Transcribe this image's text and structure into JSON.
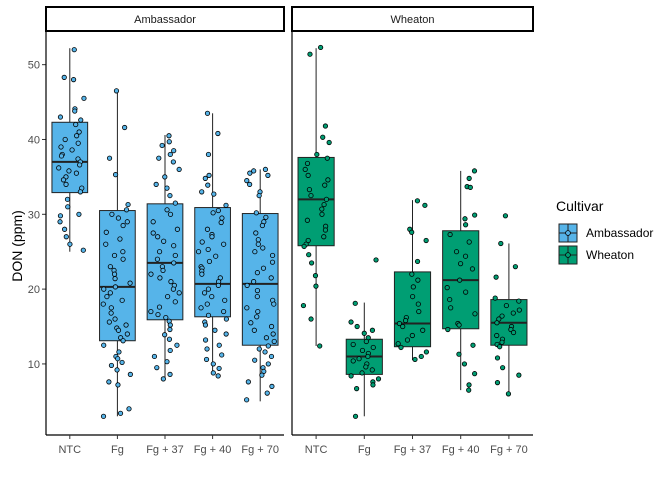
{
  "chart_data": {
    "type": "box",
    "ylabel": "DON (ppm)",
    "ylim": [
      0.5,
      54.5
    ],
    "yticks": [
      10,
      20,
      30,
      40,
      50
    ],
    "categories": [
      "NTC",
      "Fg",
      "Fg + 37",
      "Fg + 40",
      "Fg + 70"
    ],
    "legend": {
      "title": "Cultivar",
      "position": "right"
    },
    "panels": [
      {
        "name": "Ambassador",
        "color": "#56B4E9",
        "boxes": [
          {
            "category": "NTC",
            "min": 25.0,
            "q1": 32.9,
            "median": 37.0,
            "q3": 42.3,
            "max": 52.2
          },
          {
            "category": "Fg",
            "min": 3.0,
            "q1": 13.1,
            "median": 20.3,
            "q3": 30.5,
            "max": 46.3
          },
          {
            "category": "Fg + 37",
            "min": 8.0,
            "q1": 15.9,
            "median": 23.5,
            "q3": 31.4,
            "max": 40.6
          },
          {
            "category": "Fg + 40",
            "min": 8.5,
            "q1": 16.3,
            "median": 20.7,
            "q3": 30.9,
            "max": 43.5
          },
          {
            "category": "Fg + 70",
            "min": 5.0,
            "q1": 12.5,
            "median": 20.7,
            "q3": 30.1,
            "max": 36.0
          }
        ],
        "points": [
          [
            52.0,
            48.3,
            48.0,
            45.5,
            44.1,
            43.8,
            43.0,
            42.6,
            42.0,
            41.0,
            40.5,
            40.0,
            39.5,
            39.0,
            38.6,
            38.0,
            37.8,
            37.4,
            37.0,
            36.6,
            36.2,
            35.8,
            35.5,
            35.0,
            34.6,
            34.0,
            33.5,
            33.0,
            32.0,
            31.0,
            30.0,
            29.8,
            29.0,
            28.0,
            27.0,
            26.0,
            25.2
          ],
          [
            46.5,
            41.6,
            37.5,
            35.3,
            31.3,
            30.6,
            30.0,
            29.5,
            29.0,
            28.5,
            27.6,
            26.7,
            26.0,
            25.0,
            24.5,
            24.0,
            23.0,
            22.5,
            22.0,
            21.4,
            20.8,
            20.3,
            20.0,
            19.5,
            19.0,
            18.5,
            18.0,
            17.5,
            16.8,
            16.0,
            15.6,
            15.2,
            14.8,
            14.5,
            14.0,
            13.5,
            13.1,
            12.5,
            11.6,
            11.0,
            10.7,
            10.2,
            9.8,
            9.2,
            8.6,
            7.6,
            7.2,
            4.0,
            3.4,
            3.0
          ],
          [
            40.5,
            39.7,
            39.2,
            38.5,
            38.0,
            37.5,
            37.0,
            36.0,
            35.0,
            34.0,
            33.5,
            32.5,
            31.5,
            30.6,
            30.0,
            29.0,
            28.0,
            27.5,
            27.0,
            26.4,
            25.8,
            25.0,
            24.5,
            24.0,
            23.5,
            23.0,
            22.5,
            22.0,
            21.5,
            21.0,
            20.5,
            20.0,
            19.5,
            19.0,
            18.3,
            17.6,
            17.0,
            16.6,
            16.2,
            15.7,
            15.2,
            14.6,
            13.9,
            13.3,
            12.5,
            11.8,
            11.0,
            10.3,
            9.5,
            8.6,
            8.0
          ],
          [
            43.5,
            40.8,
            38.0,
            35.2,
            34.8,
            33.9,
            33.0,
            32.7,
            31.2,
            30.5,
            30.2,
            29.5,
            28.9,
            28.0,
            27.3,
            27.0,
            26.3,
            26.0,
            25.3,
            25.0,
            24.4,
            23.7,
            23.0,
            22.8,
            22.4,
            22.0,
            21.5,
            21.0,
            20.5,
            20.0,
            19.5,
            19.0,
            18.5,
            18.0,
            17.5,
            17.0,
            16.5,
            16.0,
            15.6,
            15.2,
            14.5,
            14.0,
            13.2,
            12.5,
            12.0,
            11.2,
            10.6,
            10.0,
            9.4,
            8.8,
            8.4
          ],
          [
            36.0,
            35.8,
            35.5,
            35.2,
            34.5,
            34.0,
            33.0,
            32.5,
            30.2,
            29.6,
            29.0,
            28.5,
            27.5,
            26.6,
            26.0,
            25.5,
            25.0,
            24.5,
            23.6,
            22.8,
            22.2,
            21.5,
            21.0,
            20.5,
            19.8,
            19.0,
            18.5,
            18.0,
            17.5,
            17.0,
            16.3,
            15.5,
            15.0,
            14.5,
            14.0,
            13.5,
            13.0,
            12.4,
            12.0,
            11.6,
            11.0,
            10.5,
            10.0,
            9.5,
            9.0,
            8.5,
            7.6,
            7.0,
            6.1,
            5.2
          ]
        ]
      },
      {
        "name": "Wheaton",
        "color": "#009E73",
        "boxes": [
          {
            "category": "NTC",
            "min": 12.4,
            "q1": 25.8,
            "median": 32.0,
            "q3": 37.6,
            "max": 52.2
          },
          {
            "category": "Fg",
            "min": 3.0,
            "q1": 8.6,
            "median": 11.0,
            "q3": 13.3,
            "max": 18.2
          },
          {
            "category": "Fg + 37",
            "min": 10.5,
            "q1": 12.3,
            "median": 15.4,
            "q3": 22.3,
            "max": 31.9
          },
          {
            "category": "Fg + 40",
            "min": 6.5,
            "q1": 14.7,
            "median": 21.2,
            "q3": 27.8,
            "max": 35.8
          },
          {
            "category": "Fg + 70",
            "min": 6.0,
            "q1": 12.5,
            "median": 15.5,
            "q3": 18.6,
            "max": 26.1
          }
        ],
        "points": [
          [
            52.3,
            51.4,
            41.8,
            40.3,
            39.6,
            38.0,
            37.5,
            36.8,
            36.0,
            35.2,
            34.6,
            33.9,
            33.3,
            32.5,
            32.0,
            31.3,
            30.7,
            30.0,
            29.2,
            28.4,
            27.9,
            27.0,
            26.5,
            26.0,
            25.7,
            24.6,
            23.5,
            21.8,
            20.4,
            17.8,
            16.0,
            12.4
          ],
          [
            23.9,
            18.1,
            15.6,
            15.0,
            14.5,
            14.1,
            13.5,
            13.0,
            12.6,
            12.2,
            11.8,
            11.4,
            11.0,
            10.7,
            10.4,
            10.0,
            9.6,
            9.2,
            8.8,
            8.4,
            8.0,
            7.6,
            7.2,
            6.7,
            3.0
          ],
          [
            31.8,
            31.2,
            28.0,
            27.6,
            26.5,
            23.7,
            22.0,
            21.2,
            20.3,
            19.0,
            18.0,
            17.0,
            16.2,
            15.8,
            15.4,
            15.0,
            14.5,
            13.8,
            13.2,
            12.7,
            12.2,
            11.6,
            11.0,
            10.6
          ],
          [
            35.8,
            34.8,
            33.7,
            33.6,
            29.9,
            29.4,
            28.6,
            27.3,
            26.3,
            25.0,
            24.4,
            23.4,
            22.7,
            21.2,
            20.2,
            19.6,
            18.6,
            17.5,
            16.7,
            15.4,
            15.2,
            14.6,
            12.5,
            11.3,
            10.0,
            8.7,
            7.2,
            6.5
          ],
          [
            29.8,
            26.1,
            23.0,
            21.6,
            18.8,
            18.4,
            17.8,
            17.2,
            16.8,
            16.4,
            16.0,
            15.5,
            15.0,
            14.6,
            14.2,
            13.8,
            13.3,
            12.9,
            12.6,
            12.3,
            10.8,
            9.5,
            8.5,
            7.5,
            6.0
          ]
        ]
      }
    ]
  }
}
